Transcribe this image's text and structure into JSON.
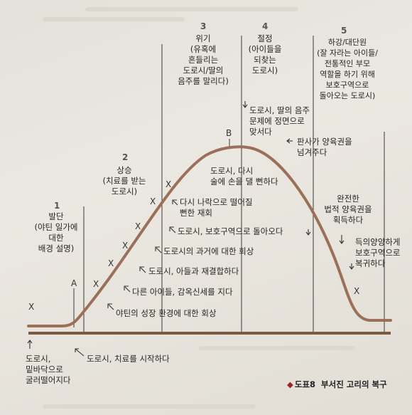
{
  "stages": [
    {
      "number": "1",
      "lines": [
        "발단",
        "(야틴 일가에",
        "대한",
        "배경 설명)"
      ]
    },
    {
      "number": "2",
      "lines": [
        "상승",
        "(치료를 받는",
        "도로시)"
      ]
    },
    {
      "number": "3",
      "lines": [
        "위기",
        "(유혹에",
        "흔들리는",
        "도로시/딸의",
        "음주를 말리다)"
      ]
    },
    {
      "number": "4",
      "lines": [
        "절정",
        "(아이들을",
        "되찾는",
        "도로시)"
      ]
    },
    {
      "number": "5",
      "lines": [
        "하강/대단원",
        "(잘 자라는 아이들/",
        "전통적인 부모",
        "역할을 하기 위해",
        "보호구역으로",
        "돌아오는 도로시)"
      ]
    }
  ],
  "point_labels": {
    "a": "A",
    "b": "B"
  },
  "marker": "X",
  "events": {
    "fell": [
      "도로시,",
      "밑바닥으로",
      "굴러떨어지다"
    ],
    "treatment": "도로시, 치료를 시작하다",
    "memory_upbringing": "야틴의 성장 환경에 대한 회상",
    "children_check": "다른 아이들, 감옥신세를 지다",
    "reunite": "도로시, 아들과 재결합하다",
    "past_memory": "도로시의 과거에 대한 회상",
    "return_reserve": "도로시, 보호구역으로 돌아오다",
    "relapse": [
      "다시 나락으로 떨어질",
      "뻔한 재회"
    ],
    "almost_hand": [
      "도로시, 다시",
      "술에 손을 댈 뻔하다"
    ],
    "confront": [
      "도로시, 딸의 음주",
      "문제에 정면으로",
      "맞서다"
    ],
    "custody_judge": [
      "판사가 양육권을",
      "넘겨주다"
    ],
    "custody_full": [
      "완전한",
      "법적 양육권을",
      "획득하다"
    ],
    "daughter_return": [
      "득의양양하게",
      "보호구역으로",
      "복귀하다"
    ]
  },
  "caption": {
    "marker": "◆",
    "label": "도표8",
    "title": "부서진 고리의 복구"
  }
}
